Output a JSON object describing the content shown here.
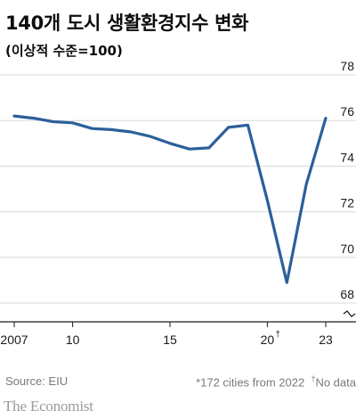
{
  "title": "140개 도시 생활환경지수 변화",
  "subtitle": "(이상적 수준=100)",
  "colors": {
    "line": "#2b5f9a",
    "grid": "#d9d9d9",
    "axis": "#1a1a1a"
  },
  "chart_data": {
    "type": "line",
    "title": "140개 도시 생활환경지수 변화",
    "subtitle": "(이상적 수준=100)",
    "xlabel": "",
    "ylabel": "",
    "x": [
      2007,
      2008,
      2009,
      2010,
      2011,
      2012,
      2013,
      2014,
      2015,
      2016,
      2017,
      2018,
      2019,
      2020,
      2021,
      2022,
      2023
    ],
    "series": [
      {
        "values": [
          76.2,
          76.1,
          75.95,
          75.9,
          75.65,
          75.6,
          75.5,
          75.3,
          75.0,
          74.75,
          74.8,
          75.7,
          75.8,
          72.5,
          68.9,
          73.2,
          76.1
        ]
      }
    ],
    "ylim": [
      67,
      78
    ],
    "yticks": [
      68,
      70,
      72,
      74,
      76,
      78
    ],
    "xticks": [
      {
        "value": 2007,
        "label": "2007"
      },
      {
        "value": 2010,
        "label": "10"
      },
      {
        "value": 2015,
        "label": "15"
      },
      {
        "value": 2020,
        "label": "20"
      },
      {
        "value": 2023,
        "label": "23"
      }
    ],
    "axis_break": true,
    "x_footnote_mark": "†",
    "grid": "horizontal",
    "y_axis_side": "right"
  },
  "footer": {
    "source": "Source: EIU",
    "note_mark": "*",
    "note": "172 cities from 2022",
    "dagger_mark": "†",
    "dagger_note": "No data"
  },
  "brand": "The Economist"
}
